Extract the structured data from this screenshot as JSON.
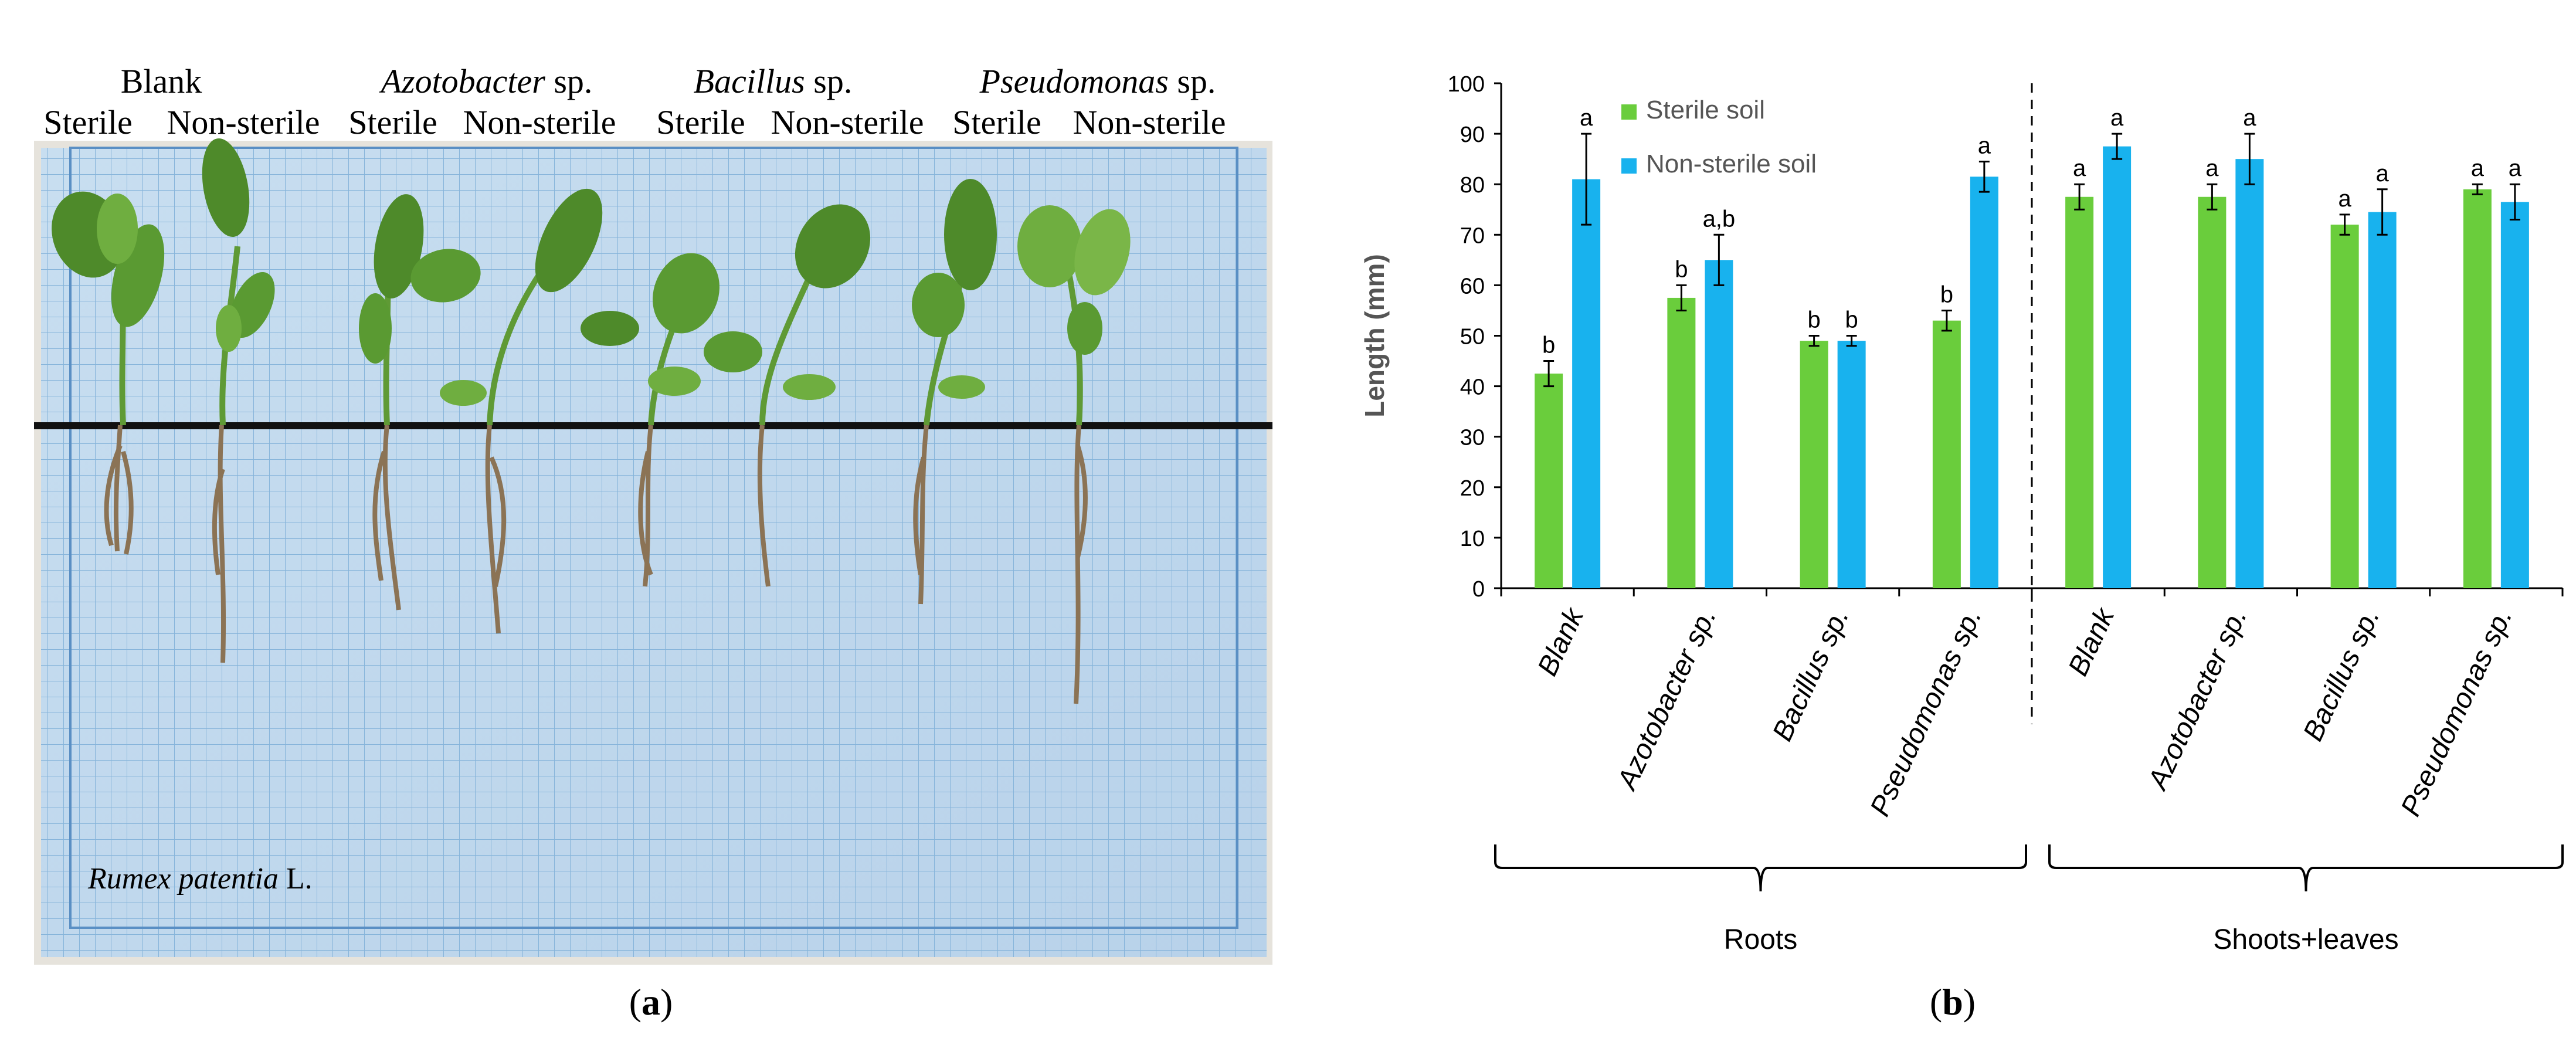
{
  "panel_a": {
    "groups": [
      {
        "name": "Blank",
        "italic": false
      },
      {
        "name": "Azotobacter",
        "italic": true,
        "suffix": "sp."
      },
      {
        "name": "Bacillus",
        "italic": true,
        "suffix": "sp."
      },
      {
        "name": "Pseudomonas",
        "italic": true,
        "suffix": "sp."
      }
    ],
    "sterile_label": "Sterile",
    "nonsterile_label": "Non-sterile",
    "species_italic": "Rumex patentia",
    "species_suffix": "L.",
    "caption_open": "(",
    "caption_letter": "a",
    "caption_close": ")",
    "colors": {
      "grid_bg": "#c5dcee",
      "grid_line": "#7faed8",
      "leaf": "#4e8a2a",
      "leaf_light": "#7ab648",
      "root": "#8b7355"
    }
  },
  "panel_b": {
    "caption_open": "(",
    "caption_letter": "b",
    "caption_close": ")",
    "group_labels": [
      "Roots",
      "Shoots+leaves"
    ]
  },
  "chart_data": {
    "type": "bar",
    "ylabel": "Length  (mm)",
    "ylim": [
      0,
      100
    ],
    "yticks": [
      0,
      10,
      20,
      30,
      40,
      50,
      60,
      70,
      80,
      90,
      100
    ],
    "categories": [
      "Blank",
      "Azotobacter sp.",
      "Bacillus sp.",
      "Pseudomonas sp.",
      "Blank",
      "Azotobacter sp.",
      "Bacillus sp.",
      "Pseudomonas sp."
    ],
    "groups": [
      {
        "label": "Roots",
        "categories": [
          0,
          1,
          2,
          3
        ]
      },
      {
        "label": "Shoots+leaves",
        "categories": [
          4,
          5,
          6,
          7
        ]
      }
    ],
    "series": [
      {
        "name": "Sterile soil",
        "color": "#6acd3c",
        "values": [
          42.5,
          57.5,
          49,
          53,
          77.5,
          77.5,
          72,
          79
        ],
        "errors": [
          2.5,
          2.5,
          1,
          2,
          2.5,
          2.5,
          2,
          1
        ],
        "letters": [
          "b",
          "b",
          "b",
          "b",
          "a",
          "a",
          "a",
          "a"
        ]
      },
      {
        "name": "Non-sterile soil",
        "color": "#18b2ee",
        "values": [
          81,
          65,
          49,
          81.5,
          87.5,
          85,
          74.5,
          76.5
        ],
        "errors": [
          9,
          5,
          1,
          3,
          2.5,
          5,
          4.5,
          3.5
        ],
        "letters": [
          "a",
          "a,b",
          "b",
          "a",
          "a",
          "a",
          "a",
          "a"
        ]
      }
    ],
    "legend_position": "top-left",
    "grid": false
  }
}
